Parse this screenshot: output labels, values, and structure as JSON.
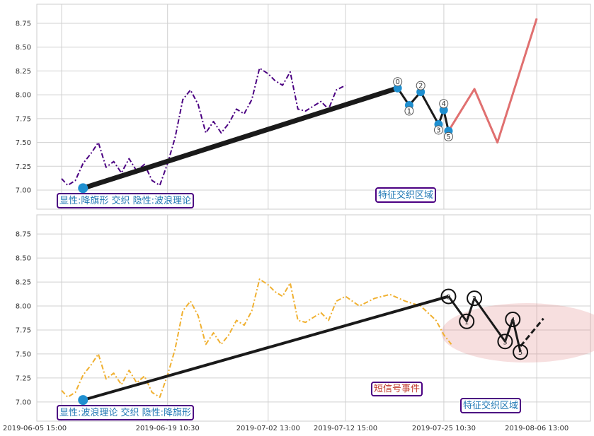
{
  "chart_data": [
    {
      "type": "line",
      "panel": "top",
      "x_range": [
        "2019-06-05 15:00",
        "2019-08-13 13:00"
      ],
      "ylim": [
        6.8,
        8.95
      ],
      "yticks": [
        7.0,
        7.25,
        7.5,
        7.75,
        8.0,
        8.25,
        8.5,
        8.75
      ],
      "ytick_labels": [
        "7.00",
        "7.25",
        "7.50",
        "7.75",
        "8.00",
        "8.25",
        "8.50",
        "8.75"
      ],
      "grid": true,
      "series": [
        {
          "style": "dash-dot",
          "color": "#4b0082",
          "points": [
            [
              "2019-06-05 15:00",
              7.12
            ],
            [
              "2019-06-06 10:00",
              7.05
            ],
            [
              "2019-06-07 10:00",
              7.1
            ],
            [
              "2019-06-08 10:00",
              7.28
            ],
            [
              "2019-06-09 10:00",
              7.38
            ],
            [
              "2019-06-10 10:00",
              7.5
            ],
            [
              "2019-06-11 10:00",
              7.24
            ],
            [
              "2019-06-12 10:00",
              7.3
            ],
            [
              "2019-06-13 10:00",
              7.18
            ],
            [
              "2019-06-14 10:00",
              7.33
            ],
            [
              "2019-06-15 10:00",
              7.2
            ],
            [
              "2019-06-16 10:00",
              7.27
            ],
            [
              "2019-06-17 10:00",
              7.1
            ],
            [
              "2019-06-18 10:00",
              7.05
            ],
            [
              "2019-06-19 10:30",
              7.28
            ],
            [
              "2019-06-20 10:00",
              7.55
            ],
            [
              "2019-06-21 10:00",
              7.95
            ],
            [
              "2019-06-22 10:00",
              8.05
            ],
            [
              "2019-06-23 10:00",
              7.9
            ],
            [
              "2019-06-24 10:00",
              7.6
            ],
            [
              "2019-06-25 10:00",
              7.72
            ],
            [
              "2019-06-26 10:00",
              7.6
            ],
            [
              "2019-06-27 10:00",
              7.7
            ],
            [
              "2019-06-28 10:00",
              7.85
            ],
            [
              "2019-06-29 10:00",
              7.8
            ],
            [
              "2019-06-30 10:00",
              7.95
            ],
            [
              "2019-07-01 10:00",
              8.28
            ],
            [
              "2019-07-02 13:00",
              8.22
            ],
            [
              "2019-07-03 10:00",
              8.15
            ],
            [
              "2019-07-04 10:00",
              8.1
            ],
            [
              "2019-07-05 10:00",
              8.24
            ],
            [
              "2019-07-06 10:00",
              7.85
            ],
            [
              "2019-07-07 10:00",
              7.83
            ],
            [
              "2019-07-08 10:00",
              7.88
            ],
            [
              "2019-07-09 10:00",
              7.93
            ],
            [
              "2019-07-10 10:00",
              7.85
            ],
            [
              "2019-07-11 10:00",
              8.05
            ],
            [
              "2019-07-12 15:00",
              8.1
            ]
          ]
        },
        {
          "style": "solid",
          "color": "#1a1a1a",
          "points": [
            [
              "2019-06-08 10:00",
              7.02
            ],
            [
              "2019-07-19 10:00",
              8.07
            ]
          ]
        },
        {
          "style": "solid",
          "color": "#1a1a1a",
          "points": [
            [
              "2019-07-19 10:00",
              8.07
            ],
            [
              "2019-07-20 22:00",
              7.89
            ],
            [
              "2019-07-22 10:00",
              8.03
            ],
            [
              "2019-07-24 18:00",
              7.69
            ],
            [
              "2019-07-25 10:00",
              7.84
            ],
            [
              "2019-07-26 01:00",
              7.62
            ]
          ]
        },
        {
          "style": "solid",
          "color": "#e07070",
          "points": [
            [
              "2019-07-26 01:00",
              7.62
            ],
            [
              "2019-07-29 10:00",
              8.06
            ],
            [
              "2019-08-01 10:00",
              7.5
            ],
            [
              "2019-08-06 13:00",
              8.8
            ]
          ]
        }
      ],
      "wave_points": [
        {
          "label": "0",
          "x": "2019-07-19 10:00",
          "y": 8.07
        },
        {
          "label": "1",
          "x": "2019-07-20 22:00",
          "y": 7.89
        },
        {
          "label": "2",
          "x": "2019-07-22 10:00",
          "y": 8.03
        },
        {
          "label": "3",
          "x": "2019-07-24 18:00",
          "y": 7.69
        },
        {
          "label": "4",
          "x": "2019-07-25 10:00",
          "y": 7.84
        },
        {
          "label": "5",
          "x": "2019-07-26 01:00",
          "y": 7.62
        }
      ],
      "annotations": [
        {
          "text": "显性:降旗形 交织 隐性:波浪理论",
          "color": "#1f77b4",
          "border": "#4b0082"
        },
        {
          "text": "特征交织区域",
          "color": "#1f77b4",
          "border": "#4b0082"
        }
      ]
    },
    {
      "type": "line",
      "panel": "bottom",
      "x_range": [
        "2019-06-05 15:00",
        "2019-08-13 13:00"
      ],
      "xticks": [
        "2019-06-05 15:00",
        "2019-06-19 10:30",
        "2019-07-02 13:00",
        "2019-07-12 15:00",
        "2019-07-25 10:30",
        "2019-08-06 13:00"
      ],
      "ylim": [
        6.8,
        8.95
      ],
      "yticks": [
        7.0,
        7.25,
        7.5,
        7.75,
        8.0,
        8.25,
        8.5,
        8.75
      ],
      "ytick_labels": [
        "7.00",
        "7.25",
        "7.50",
        "7.75",
        "8.00",
        "8.25",
        "8.50",
        "8.75"
      ],
      "grid": true,
      "series": [
        {
          "style": "dash-dot",
          "color": "#f0b030",
          "points": [
            [
              "2019-06-05 15:00",
              7.12
            ],
            [
              "2019-06-06 10:00",
              7.05
            ],
            [
              "2019-06-07 10:00",
              7.1
            ],
            [
              "2019-06-08 10:00",
              7.28
            ],
            [
              "2019-06-09 10:00",
              7.38
            ],
            [
              "2019-06-10 10:00",
              7.5
            ],
            [
              "2019-06-11 10:00",
              7.24
            ],
            [
              "2019-06-12 10:00",
              7.3
            ],
            [
              "2019-06-13 10:00",
              7.18
            ],
            [
              "2019-06-14 10:00",
              7.33
            ],
            [
              "2019-06-15 10:00",
              7.2
            ],
            [
              "2019-06-16 10:00",
              7.27
            ],
            [
              "2019-06-17 10:00",
              7.1
            ],
            [
              "2019-06-18 10:00",
              7.05
            ],
            [
              "2019-06-19 10:30",
              7.28
            ],
            [
              "2019-06-20 10:00",
              7.55
            ],
            [
              "2019-06-21 10:00",
              7.95
            ],
            [
              "2019-06-22 10:00",
              8.05
            ],
            [
              "2019-06-23 10:00",
              7.9
            ],
            [
              "2019-06-24 10:00",
              7.6
            ],
            [
              "2019-06-25 10:00",
              7.72
            ],
            [
              "2019-06-26 10:00",
              7.6
            ],
            [
              "2019-06-27 10:00",
              7.7
            ],
            [
              "2019-06-28 10:00",
              7.85
            ],
            [
              "2019-06-29 10:00",
              7.8
            ],
            [
              "2019-06-30 10:00",
              7.95
            ],
            [
              "2019-07-01 10:00",
              8.28
            ],
            [
              "2019-07-02 13:00",
              8.22
            ],
            [
              "2019-07-03 10:00",
              8.15
            ],
            [
              "2019-07-04 10:00",
              8.1
            ],
            [
              "2019-07-05 10:00",
              8.24
            ],
            [
              "2019-07-06 10:00",
              7.85
            ],
            [
              "2019-07-07 10:00",
              7.83
            ],
            [
              "2019-07-08 10:00",
              7.88
            ],
            [
              "2019-07-09 10:00",
              7.93
            ],
            [
              "2019-07-10 10:00",
              7.85
            ],
            [
              "2019-07-11 10:00",
              8.05
            ],
            [
              "2019-07-12 15:00",
              8.1
            ],
            [
              "2019-07-14 10:00",
              8.0
            ],
            [
              "2019-07-16 10:00",
              8.08
            ],
            [
              "2019-07-18 10:00",
              8.12
            ],
            [
              "2019-07-20 10:00",
              8.05
            ],
            [
              "2019-07-22 10:00",
              8.0
            ],
            [
              "2019-07-24 10:00",
              7.85
            ],
            [
              "2019-07-25 10:30",
              7.7
            ],
            [
              "2019-07-26 10:00",
              7.6
            ]
          ]
        },
        {
          "style": "solid",
          "color": "#1a1a1a",
          "points": [
            [
              "2019-06-08 10:00",
              7.02
            ],
            [
              "2019-07-26 01:00",
              8.1
            ]
          ]
        },
        {
          "style": "solid",
          "color": "#1a1a1a",
          "points": [
            [
              "2019-07-26 01:00",
              8.1
            ],
            [
              "2019-07-28 10:00",
              7.84
            ],
            [
              "2019-07-29 10:00",
              8.08
            ],
            [
              "2019-08-02 10:00",
              7.63
            ],
            [
              "2019-08-03 10:00",
              7.86
            ],
            [
              "2019-08-04 10:00",
              7.52
            ]
          ]
        },
        {
          "style": "dashed",
          "color": "#1a1a1a",
          "points": [
            [
              "2019-08-04 10:00",
              7.58
            ],
            [
              "2019-08-07 10:00",
              7.87
            ]
          ]
        }
      ],
      "wave_points": [
        {
          "label": "0",
          "x": "2019-07-26 01:00",
          "y": 8.1
        },
        {
          "label": "1",
          "x": "2019-07-28 10:00",
          "y": 7.84
        },
        {
          "label": "2",
          "x": "2019-07-29 10:00",
          "y": 8.08
        },
        {
          "label": "3",
          "x": "2019-08-02 10:00",
          "y": 7.63
        },
        {
          "label": "4",
          "x": "2019-08-03 10:00",
          "y": 7.86
        },
        {
          "label": "5",
          "x": "2019-08-04 10:00",
          "y": 7.52
        }
      ],
      "annotations": [
        {
          "text": "显性:波浪理论 交织 隐性:降旗形",
          "color": "#1f77b4",
          "border": "#4b0082"
        },
        {
          "text": "短信号事件",
          "color": "#c0392b",
          "border": "#4b0082"
        },
        {
          "text": "特征交织区域",
          "color": "#1f77b4",
          "border": "#4b0082"
        }
      ]
    }
  ]
}
